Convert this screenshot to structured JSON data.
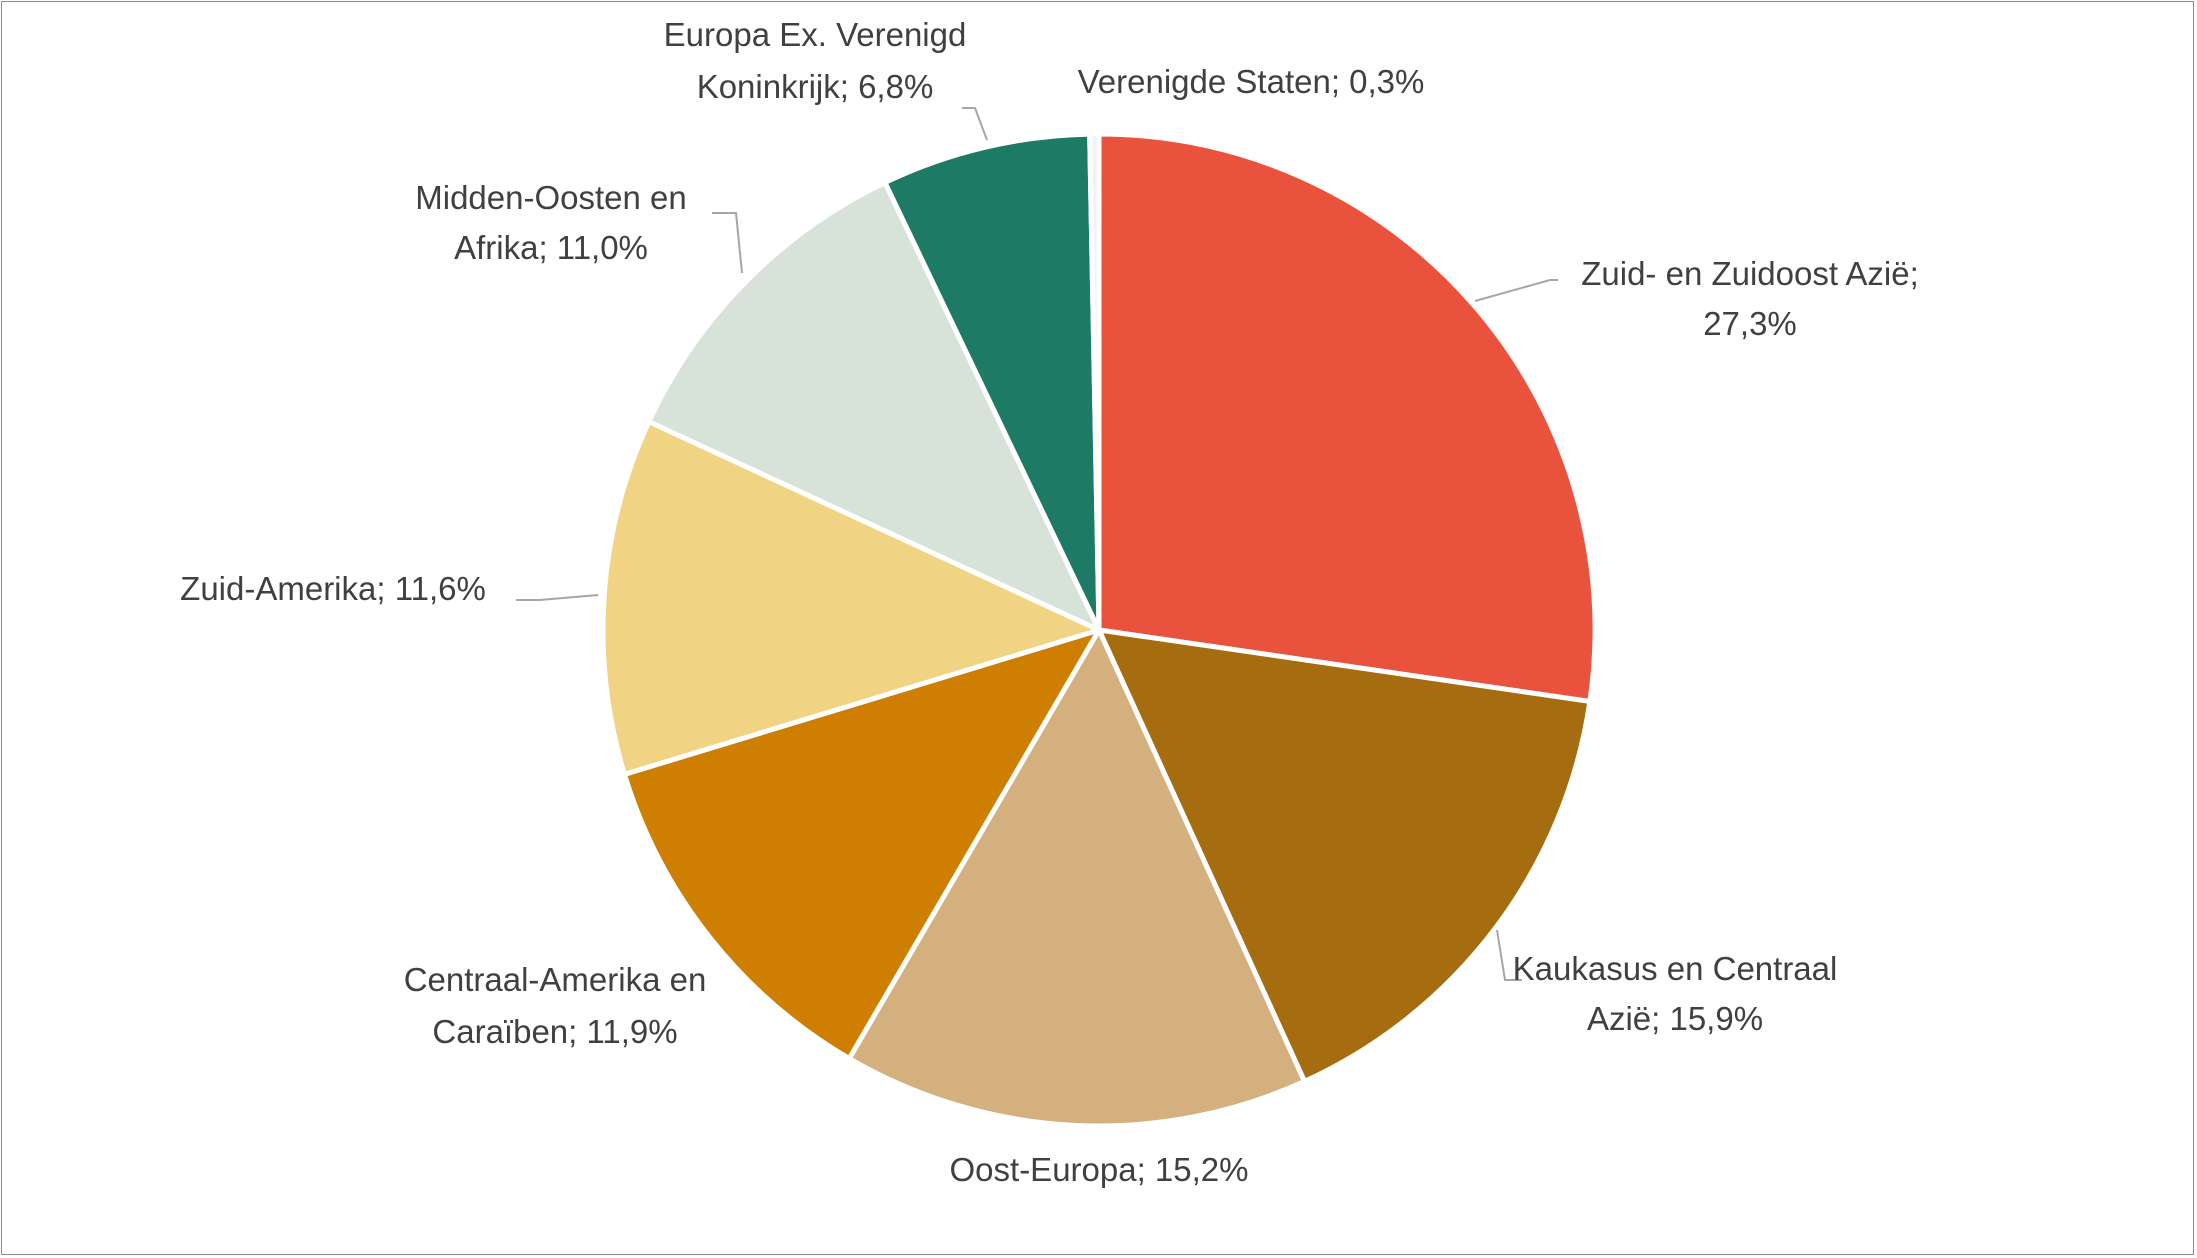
{
  "chart_data": {
    "type": "pie",
    "title": "",
    "start_angle_deg": 0,
    "direction": "clockwise",
    "slices": [
      {
        "category": "Zuid- en Zuidoost Azië",
        "value": 27.3,
        "value_label": "27,3%",
        "color": "#E9533D",
        "label_lines": [
          "Zuid- en Zuidoost Azië;",
          "27,3%"
        ]
      },
      {
        "category": "Kaukasus en Centraal Azië",
        "value": 15.9,
        "value_label": "15,9%",
        "color": "#A56C10",
        "label_lines": [
          "Kaukasus en Centraal",
          "Azië; 15,9%"
        ]
      },
      {
        "category": "Oost-Europa",
        "value": 15.2,
        "value_label": "15,2%",
        "color": "#D5B07F",
        "label_lines": [
          "Oost-Europa; 15,2%"
        ]
      },
      {
        "category": "Centraal-Amerika en Caraïben",
        "value": 11.9,
        "value_label": "11,9%",
        "color": "#CE7E00",
        "label_lines": [
          "Centraal-Amerika en",
          "Caraïben; 11,9%"
        ]
      },
      {
        "category": "Zuid-Amerika",
        "value": 11.6,
        "value_label": "11,6%",
        "color": "#F0D383",
        "label_lines": [
          "Zuid-Amerika; 11,6%"
        ]
      },
      {
        "category": "Midden-Oosten en Afrika",
        "value": 11.0,
        "value_label": "11,0%",
        "color": "#D7E3D9",
        "label_lines": [
          "Midden-Oosten en",
          "Afrika; 11,0%"
        ]
      },
      {
        "category": "Europa Ex. Verenigd Koninkrijk",
        "value": 6.8,
        "value_label": "6,8%",
        "color": "#1D7B65",
        "label_lines": [
          "Europa Ex. Verenigd",
          "Koninkrijk; 6,8%"
        ]
      },
      {
        "category": "Verenigde Staten",
        "value": 0.3,
        "value_label": "0,3%",
        "color": "#F2F2F2",
        "label_lines": [
          "Verenigde Staten; 0,3%"
        ]
      }
    ],
    "legend": "none",
    "data_labels": "outside with leader lines"
  }
}
